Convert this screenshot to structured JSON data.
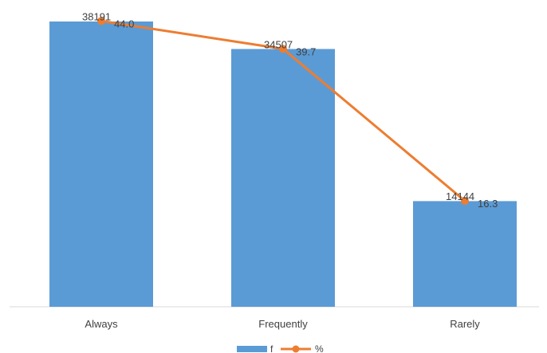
{
  "chart_data": {
    "type": "bar",
    "categories": [
      "Always",
      "Frequently",
      "Rarely"
    ],
    "series": [
      {
        "name": "f",
        "type": "bar",
        "values": [
          38191,
          34507,
          14144
        ],
        "labels": [
          "38191",
          "34507",
          "14144"
        ],
        "color": "#5b9bd5"
      },
      {
        "name": "%",
        "type": "line",
        "values": [
          44.0,
          39.7,
          16.3
        ],
        "labels": [
          "44.0",
          "39.7",
          "16.3"
        ],
        "color": "#ed7d31"
      }
    ],
    "title": "",
    "xlabel": "",
    "ylabel": "",
    "ylim": [
      0,
      40000
    ],
    "y2lim": [
      0,
      46
    ],
    "grid": false,
    "legend": "bottom-center"
  }
}
